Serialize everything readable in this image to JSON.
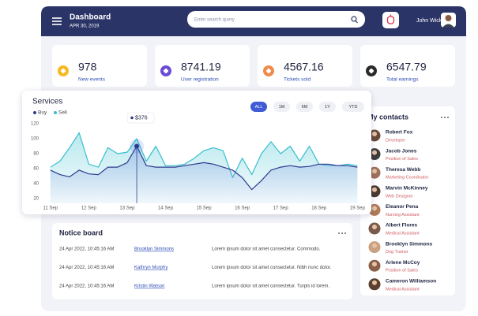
{
  "header": {
    "title": "Dashboard",
    "date": "APR 30, 2019",
    "search_placeholder": "Enter search query",
    "user": "John Wick"
  },
  "stats": [
    {
      "value": 978,
      "label": "New events",
      "color": "#f5b921"
    },
    {
      "value": 8741.19,
      "label": "User registration",
      "color": "#6c4bd6"
    },
    {
      "value": 4567.16,
      "label": "Tickets sold",
      "color": "#f08a4b"
    },
    {
      "value": 6547.79,
      "label": "Total earnings",
      "color": "#2a2a2a"
    }
  ],
  "chart_data": {
    "type": "line",
    "title": "Services",
    "range_buttons": [
      "ALL",
      "1M",
      "6M",
      "1Y",
      "YTD"
    ],
    "active_range": 0,
    "tooltip": {
      "x": 13.25,
      "label": "$376"
    },
    "x": [
      11,
      11.25,
      11.5,
      11.75,
      12,
      12.25,
      12.5,
      12.75,
      13,
      13.25,
      13.5,
      13.75,
      14,
      14.25,
      14.5,
      14.75,
      15,
      15.25,
      15.5,
      15.75,
      16,
      16.25,
      16.5,
      16.75,
      17,
      17.25,
      17.5,
      17.75,
      18,
      18.25,
      18.5,
      18.75,
      19
    ],
    "series": [
      {
        "name": "Buy",
        "color": "#2f3a8f",
        "values": [
          58,
          52,
          49,
          58,
          53,
          52,
          62,
          62,
          68,
          90,
          64,
          62,
          62,
          62,
          64,
          66,
          68,
          66,
          62,
          58,
          48,
          32,
          44,
          58,
          62,
          64,
          62,
          63,
          66,
          66,
          64,
          64,
          62
        ]
      },
      {
        "name": "Sell",
        "color": "#38bfcf",
        "values": [
          62,
          70,
          88,
          108,
          66,
          62,
          88,
          80,
          82,
          100,
          70,
          90,
          64,
          64,
          66,
          74,
          84,
          88,
          84,
          48,
          74,
          52,
          80,
          96,
          80,
          90,
          70,
          90,
          66,
          64,
          64,
          66,
          64
        ]
      }
    ],
    "xlim": [
      10.86,
      19.2
    ],
    "xticks": [
      {
        "value": 11,
        "label": "11 Sep"
      },
      {
        "value": 12,
        "label": "12 Sep"
      },
      {
        "value": 13,
        "label": "13 Sep"
      },
      {
        "value": 14,
        "label": "14 Sep"
      },
      {
        "value": 15,
        "label": "15 Sep"
      },
      {
        "value": 16,
        "label": "16 Sep"
      },
      {
        "value": 17,
        "label": "17 Sep"
      },
      {
        "value": 18,
        "label": "18 Sep"
      },
      {
        "value": 19,
        "label": "19 Sep"
      }
    ],
    "ylim": [
      14,
      126
    ],
    "yticks": [
      20,
      40,
      60,
      80,
      100,
      120
    ],
    "grid": false
  },
  "notice_board": {
    "title": "Notice board",
    "rows": [
      [
        "24 Apr 2022, 10:45:16 AM",
        "Brooklyn Simmons",
        "Lorem ipsum dolor sit amet consectetur. Commodo."
      ],
      [
        "24 Apr 2022, 10:45:16 AM",
        "Kathryn Murphy",
        "Lorem ipsum dolor sit amet consectetur. Nibh nunc dolor."
      ],
      [
        "24 Apr 2022, 10:45:16 AM",
        "Kristin Watson",
        "Lorem ipsum dolor sit amet consectetur. Turpis id lorem."
      ]
    ]
  },
  "contacts": {
    "title": "My contacts",
    "people": [
      {
        "name": "Robert Fox",
        "role": "Developer"
      },
      {
        "name": "Jacob Jones",
        "role": "Position of Sales"
      },
      {
        "name": "Theresa Webb",
        "role": "Marketing Coordinator"
      },
      {
        "name": "Marvin McKinney",
        "role": "Web Designer"
      },
      {
        "name": "Eleanor Pena",
        "role": "Nursing Assistant"
      },
      {
        "name": "Albert Flores",
        "role": "Medical Assistant"
      },
      {
        "name": "Brooklyn Simmons",
        "role": "Dog Trainer"
      },
      {
        "name": "Arlene McCoy",
        "role": "Position of Sales"
      },
      {
        "name": "Cameron Williamson",
        "role": "Medical Assistant"
      }
    ]
  }
}
